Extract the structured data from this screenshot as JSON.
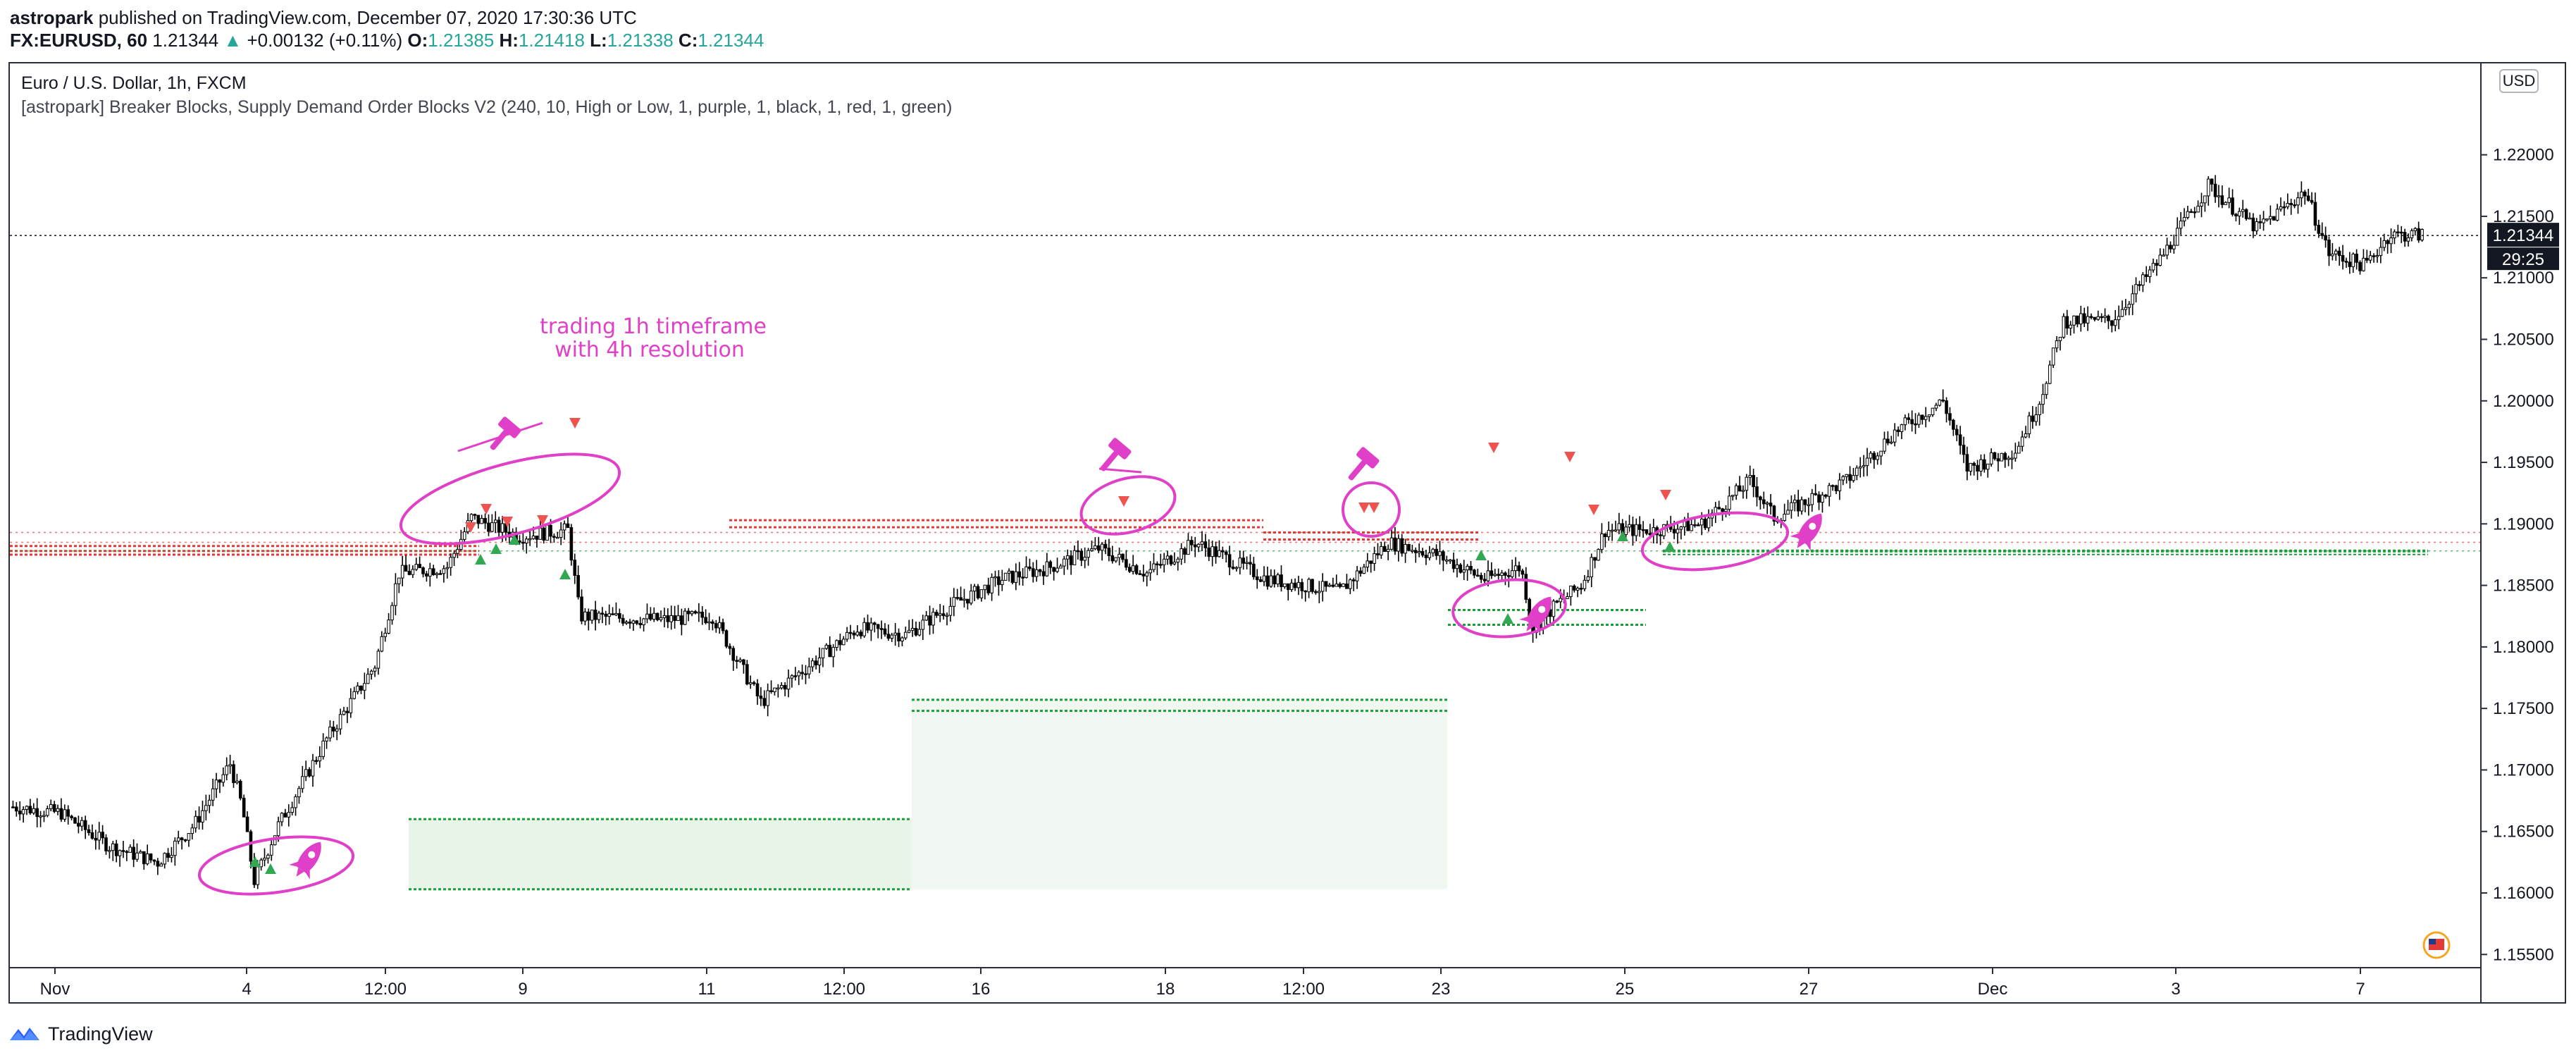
{
  "header": {
    "user": "astropark",
    "published_text": " published on TradingView.com, December 07, 2020 17:30:36 UTC",
    "symbol": "FX:EURUSD, 60",
    "last": "1.21344",
    "change_arrow": "▲",
    "change": "+0.00132 (+0.11%)",
    "o_label": "O:",
    "o": "1.21385",
    "h_label": "H:",
    "h": "1.21418",
    "l_label": "L:",
    "l": "1.21338",
    "c_label": "C:",
    "c": "1.21344"
  },
  "legend": {
    "title": "Euro / U.S. Dollar, 1h, FXCM",
    "indicator": "[astropark] Breaker Blocks, Supply Demand Order Blocks V2 (240, 10, High or Low, 1, purple, 1, black, 1, red, 1, green)"
  },
  "currency_button": "USD",
  "price_label": "1.21344",
  "countdown_label": "29:25",
  "annotation": {
    "line1": "trading 1h timeframe",
    "line2": "with 4h resolution"
  },
  "brand": "TradingView",
  "colors": {
    "up": "#26a69a",
    "annotation": "#e040c8",
    "supply": "#e53935",
    "demand": "#1b9e3a",
    "candle": "#000000"
  },
  "chart_data": {
    "type": "candlestick",
    "symbol": "EURUSD",
    "interval": "1h",
    "ylim": [
      1.1545,
      1.2225
    ],
    "y_ticks": [
      "1.22000",
      "1.21500",
      "1.21000",
      "1.20500",
      "1.20000",
      "1.19500",
      "1.19000",
      "1.18500",
      "1.18000",
      "1.17500",
      "1.17000",
      "1.16500",
      "1.16000",
      "1.15500"
    ],
    "x_ticks": [
      "Nov",
      "4",
      "12:00",
      "9",
      "11",
      "12:00",
      "16",
      "18",
      "12:00",
      "23",
      "25",
      "27",
      "Dec",
      "3",
      "7"
    ],
    "last_price": 1.21344,
    "price_path": [
      [
        0,
        1.167
      ],
      [
        0.02,
        1.1665
      ],
      [
        0.04,
        1.1638
      ],
      [
        0.06,
        1.1625
      ],
      [
        0.075,
        1.1655
      ],
      [
        0.09,
        1.1705
      ],
      [
        0.095,
        1.167
      ],
      [
        0.1,
        1.161
      ],
      [
        0.11,
        1.1655
      ],
      [
        0.13,
        1.1725
      ],
      [
        0.15,
        1.1785
      ],
      [
        0.16,
        1.186
      ],
      [
        0.18,
        1.1865
      ],
      [
        0.19,
        1.1905
      ],
      [
        0.21,
        1.189
      ],
      [
        0.23,
        1.1895
      ],
      [
        0.235,
        1.1825
      ],
      [
        0.27,
        1.1822
      ],
      [
        0.29,
        1.1825
      ],
      [
        0.31,
        1.1755
      ],
      [
        0.33,
        1.1785
      ],
      [
        0.35,
        1.1815
      ],
      [
        0.37,
        1.181
      ],
      [
        0.39,
        1.1835
      ],
      [
        0.41,
        1.1855
      ],
      [
        0.43,
        1.1865
      ],
      [
        0.45,
        1.188
      ],
      [
        0.47,
        1.186
      ],
      [
        0.49,
        1.1885
      ],
      [
        0.52,
        1.1855
      ],
      [
        0.55,
        1.1845
      ],
      [
        0.57,
        1.1885
      ],
      [
        0.59,
        1.1875
      ],
      [
        0.61,
        1.1855
      ],
      [
        0.625,
        1.1865
      ],
      [
        0.63,
        1.1815
      ],
      [
        0.64,
        1.1835
      ],
      [
        0.65,
        1.185
      ],
      [
        0.66,
        1.1895
      ],
      [
        0.68,
        1.1895
      ],
      [
        0.7,
        1.19
      ],
      [
        0.72,
        1.1935
      ],
      [
        0.73,
        1.1905
      ],
      [
        0.76,
        1.1935
      ],
      [
        0.78,
        1.1975
      ],
      [
        0.8,
        1.2
      ],
      [
        0.81,
        1.1945
      ],
      [
        0.83,
        1.196
      ],
      [
        0.84,
        1.2
      ],
      [
        0.85,
        1.2065
      ],
      [
        0.87,
        1.2065
      ],
      [
        0.89,
        1.2115
      ],
      [
        0.91,
        1.2175
      ],
      [
        0.93,
        1.214
      ],
      [
        0.95,
        1.217
      ],
      [
        0.96,
        1.212
      ],
      [
        0.975,
        1.211
      ],
      [
        0.985,
        1.2135
      ]
    ],
    "supply_zones": [
      {
        "price": 1.1878,
        "range": [
          1.1875,
          1.1882
        ],
        "span": [
          "Nov",
          "8"
        ]
      },
      {
        "price": 1.1903,
        "span": [
          "11",
          "18"
        ]
      },
      {
        "price": 1.1893,
        "span": [
          "18",
          "23"
        ]
      }
    ],
    "demand_zones": [
      {
        "range": [
          1.1603,
          1.166
        ],
        "span": [
          "12:00",
          "12:00"
        ]
      },
      {
        "range": [
          1.1748,
          1.1757
        ],
        "span": [
          "16",
          "23"
        ]
      },
      {
        "range": [
          1.1818,
          1.183
        ],
        "span": [
          "23",
          "25"
        ]
      },
      {
        "price": 1.1878,
        "span": [
          "25",
          "7"
        ]
      }
    ],
    "signals": [
      {
        "type": "buy",
        "near": "4"
      },
      {
        "type": "sell",
        "near": "8"
      },
      {
        "type": "buy",
        "near": "8"
      },
      {
        "type": "sell",
        "near": "17"
      },
      {
        "type": "sell",
        "near": "21"
      },
      {
        "type": "buy",
        "near": "23"
      },
      {
        "type": "sell",
        "near": "24"
      },
      {
        "type": "buy",
        "near": "25"
      }
    ]
  }
}
